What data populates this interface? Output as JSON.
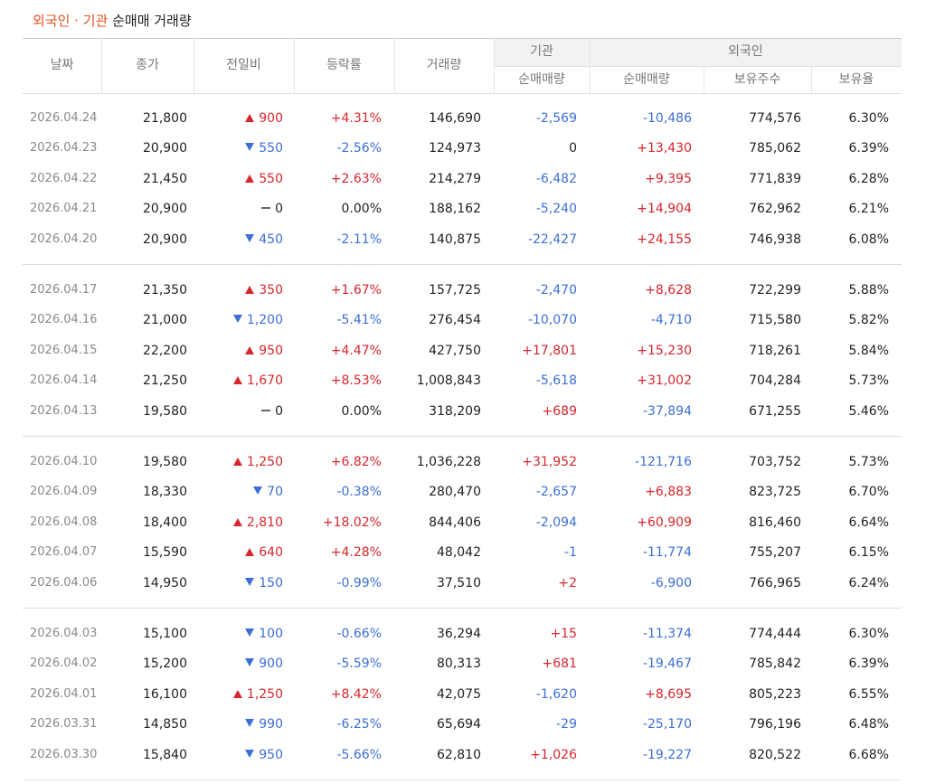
{
  "title": {
    "highlight": "외국인 · 기관",
    "rest": "순매매 거래량"
  },
  "table": {
    "headers": {
      "date": "날짜",
      "close": "종가",
      "change": "전일비",
      "rate": "등락률",
      "volume": "거래량",
      "inst": "기관",
      "foreign": "외국인",
      "inst_net": "순매매량",
      "foreign_net": "순매매량",
      "holdings": "보유주수",
      "ratio": "보유율"
    },
    "groups": [
      [
        {
          "date": "2026.04.24",
          "close": "21,800",
          "dir": "up",
          "change": "900",
          "rate": "+4.31%",
          "volume": "146,690",
          "inst": "-2,569",
          "foreign": "-10,486",
          "holdings": "774,576",
          "ratio": "6.30%"
        },
        {
          "date": "2026.04.23",
          "close": "20,900",
          "dir": "down",
          "change": "550",
          "rate": "-2.56%",
          "volume": "124,973",
          "inst": "0",
          "foreign": "+13,430",
          "holdings": "785,062",
          "ratio": "6.39%"
        },
        {
          "date": "2026.04.22",
          "close": "21,450",
          "dir": "up",
          "change": "550",
          "rate": "+2.63%",
          "volume": "214,279",
          "inst": "-6,482",
          "foreign": "+9,395",
          "holdings": "771,839",
          "ratio": "6.28%"
        },
        {
          "date": "2026.04.21",
          "close": "20,900",
          "dir": "flat",
          "change": "0",
          "rate": "0.00%",
          "volume": "188,162",
          "inst": "-5,240",
          "foreign": "+14,904",
          "holdings": "762,962",
          "ratio": "6.21%"
        },
        {
          "date": "2026.04.20",
          "close": "20,900",
          "dir": "down",
          "change": "450",
          "rate": "-2.11%",
          "volume": "140,875",
          "inst": "-22,427",
          "foreign": "+24,155",
          "holdings": "746,938",
          "ratio": "6.08%"
        }
      ],
      [
        {
          "date": "2026.04.17",
          "close": "21,350",
          "dir": "up",
          "change": "350",
          "rate": "+1.67%",
          "volume": "157,725",
          "inst": "-2,470",
          "foreign": "+8,628",
          "holdings": "722,299",
          "ratio": "5.88%"
        },
        {
          "date": "2026.04.16",
          "close": "21,000",
          "dir": "down",
          "change": "1,200",
          "rate": "-5.41%",
          "volume": "276,454",
          "inst": "-10,070",
          "foreign": "-4,710",
          "holdings": "715,580",
          "ratio": "5.82%"
        },
        {
          "date": "2026.04.15",
          "close": "22,200",
          "dir": "up",
          "change": "950",
          "rate": "+4.47%",
          "volume": "427,750",
          "inst": "+17,801",
          "foreign": "+15,230",
          "holdings": "718,261",
          "ratio": "5.84%"
        },
        {
          "date": "2026.04.14",
          "close": "21,250",
          "dir": "up",
          "change": "1,670",
          "rate": "+8.53%",
          "volume": "1,008,843",
          "inst": "-5,618",
          "foreign": "+31,002",
          "holdings": "704,284",
          "ratio": "5.73%"
        },
        {
          "date": "2026.04.13",
          "close": "19,580",
          "dir": "flat",
          "change": "0",
          "rate": "0.00%",
          "volume": "318,209",
          "inst": "+689",
          "foreign": "-37,894",
          "holdings": "671,255",
          "ratio": "5.46%"
        }
      ],
      [
        {
          "date": "2026.04.10",
          "close": "19,580",
          "dir": "up",
          "change": "1,250",
          "rate": "+6.82%",
          "volume": "1,036,228",
          "inst": "+31,952",
          "foreign": "-121,716",
          "holdings": "703,752",
          "ratio": "5.73%"
        },
        {
          "date": "2026.04.09",
          "close": "18,330",
          "dir": "down",
          "change": "70",
          "rate": "-0.38%",
          "volume": "280,470",
          "inst": "-2,657",
          "foreign": "+6,883",
          "holdings": "823,725",
          "ratio": "6.70%"
        },
        {
          "date": "2026.04.08",
          "close": "18,400",
          "dir": "up",
          "change": "2,810",
          "rate": "+18.02%",
          "volume": "844,406",
          "inst": "-2,094",
          "foreign": "+60,909",
          "holdings": "816,460",
          "ratio": "6.64%"
        },
        {
          "date": "2026.04.07",
          "close": "15,590",
          "dir": "up",
          "change": "640",
          "rate": "+4.28%",
          "volume": "48,042",
          "inst": "-1",
          "foreign": "-11,774",
          "holdings": "755,207",
          "ratio": "6.15%"
        },
        {
          "date": "2026.04.06",
          "close": "14,950",
          "dir": "down",
          "change": "150",
          "rate": "-0.99%",
          "volume": "37,510",
          "inst": "+2",
          "foreign": "-6,900",
          "holdings": "766,965",
          "ratio": "6.24%"
        }
      ],
      [
        {
          "date": "2026.04.03",
          "close": "15,100",
          "dir": "down",
          "change": "100",
          "rate": "-0.66%",
          "volume": "36,294",
          "inst": "+15",
          "foreign": "-11,374",
          "holdings": "774,444",
          "ratio": "6.30%"
        },
        {
          "date": "2026.04.02",
          "close": "15,200",
          "dir": "down",
          "change": "900",
          "rate": "-5.59%",
          "volume": "80,313",
          "inst": "+681",
          "foreign": "-19,467",
          "holdings": "785,842",
          "ratio": "6.39%"
        },
        {
          "date": "2026.04.01",
          "close": "16,100",
          "dir": "up",
          "change": "1,250",
          "rate": "+8.42%",
          "volume": "42,075",
          "inst": "-1,620",
          "foreign": "+8,695",
          "holdings": "805,223",
          "ratio": "6.55%"
        },
        {
          "date": "2026.03.31",
          "close": "14,850",
          "dir": "down",
          "change": "990",
          "rate": "-6.25%",
          "volume": "65,694",
          "inst": "-29",
          "foreign": "-25,170",
          "holdings": "796,196",
          "ratio": "6.48%"
        },
        {
          "date": "2026.03.30",
          "close": "15,840",
          "dir": "down",
          "change": "950",
          "rate": "-5.66%",
          "volume": "62,810",
          "inst": "+1,026",
          "foreign": "-19,227",
          "holdings": "820,522",
          "ratio": "6.68%"
        }
      ]
    ]
  }
}
